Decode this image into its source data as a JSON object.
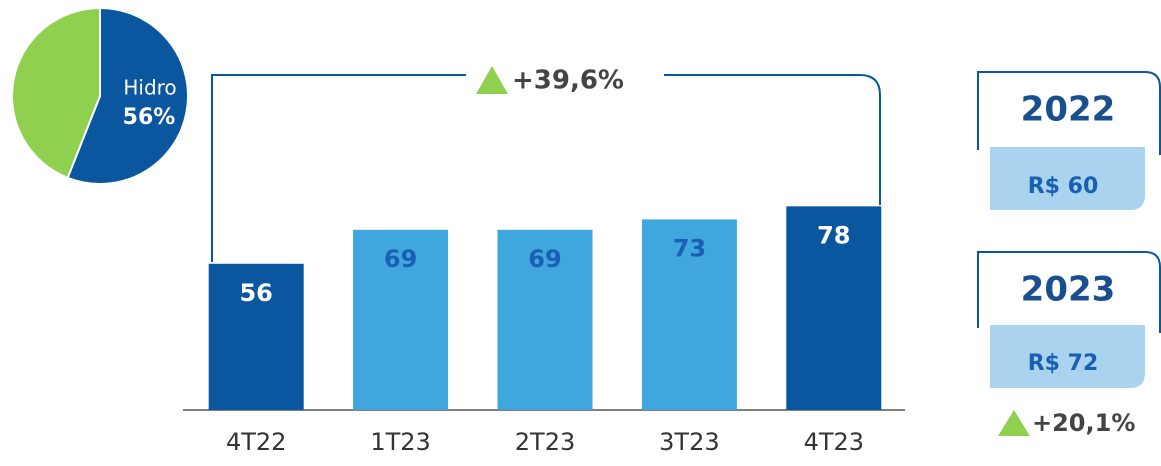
{
  "chart_data": [
    {
      "type": "pie",
      "categories": [
        "Hidro",
        null
      ],
      "values": [
        56,
        44
      ],
      "value_labels": [
        "56%",
        null
      ],
      "colors": [
        "#0a57a0",
        "#8fd14f"
      ]
    },
    {
      "type": "bar",
      "categories": [
        "4T22",
        "1T23",
        "2T23",
        "3T23",
        "4T23"
      ],
      "values": [
        56,
        69,
        69,
        73,
        78
      ],
      "colors": [
        "#0a57a0",
        "#3fa7de",
        "#3fa7de",
        "#3fa7de",
        "#0a57a0"
      ],
      "label_colors": [
        "#ffffff",
        "#1a5fb4",
        "#1a5fb4",
        "#1a5fb4",
        "#ffffff"
      ],
      "ylim": [
        0,
        90
      ],
      "annotation": "+39,6%"
    }
  ],
  "summary": [
    {
      "year": "2022",
      "value": "R$ 60"
    },
    {
      "year": "2023",
      "value": "R$ 72"
    }
  ],
  "growth": "+20,1%"
}
